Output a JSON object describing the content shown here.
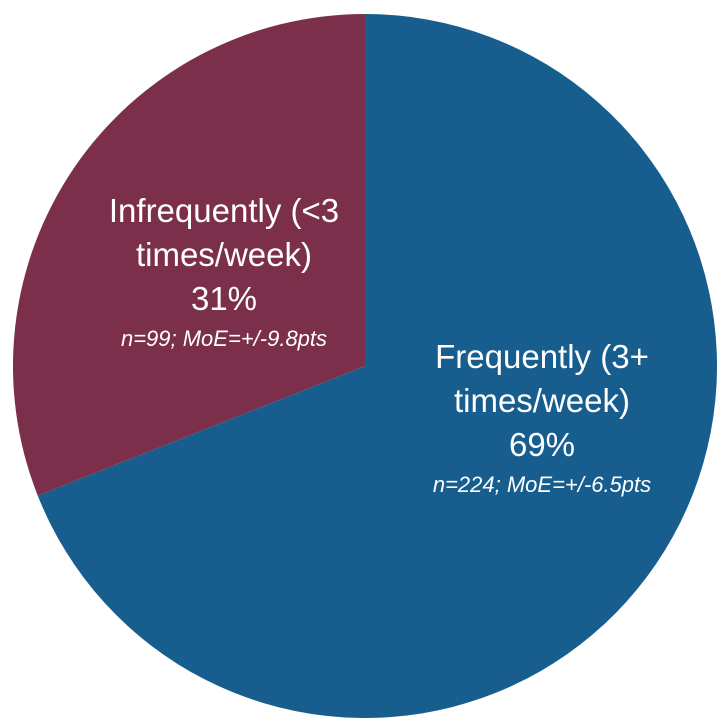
{
  "chart_data": {
    "type": "pie",
    "title": "",
    "start_angle_deg": 0,
    "direction": "clockwise",
    "slices": [
      {
        "label_lines": [
          "Frequently (3+",
          "times/week)"
        ],
        "value": 69,
        "value_label": "69%",
        "note": "n=224; MoE=+/-6.5pts",
        "color": "#175e8f"
      },
      {
        "label_lines": [
          "Infrequently (<3",
          "times/week)"
        ],
        "value": 31,
        "value_label": "31%",
        "note": "n=99; MoE=+/-9.8pts",
        "color": "#7b2f4b"
      }
    ]
  }
}
